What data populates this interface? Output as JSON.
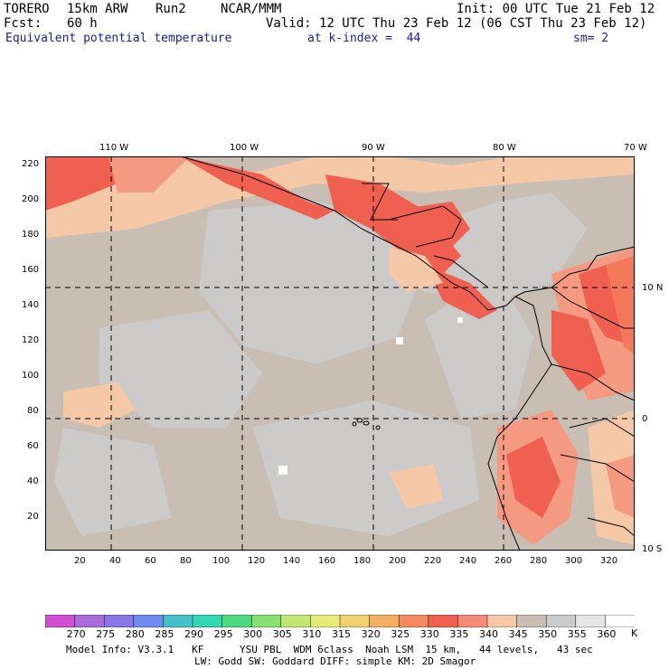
{
  "header": {
    "model": "TORERO",
    "resolution": "15km ARW",
    "run": "Run2",
    "org": "NCAR/MMM",
    "init": "Init: 00 UTC Tue 21 Feb 12",
    "fcst_label": "Fcst:",
    "fcst_value": "60 h",
    "valid": "Valid: 12 UTC Thu 23 Feb 12 (06 CST Thu 23 Feb 12)",
    "field": "Equivalent potential temperature",
    "level": "at k-index =  44",
    "smoothing": "sm= 2"
  },
  "map": {
    "lon_labels": [
      "110 W",
      "100 W",
      "90 W",
      "80 W",
      "70 W"
    ],
    "lat_labels": [
      "10 N",
      "0",
      "10 S"
    ],
    "y_ticks": [
      "220",
      "200",
      "180",
      "160",
      "140",
      "120",
      "100",
      "80",
      "60",
      "40",
      "20"
    ],
    "x_ticks": [
      "20",
      "40",
      "60",
      "80",
      "100",
      "120",
      "140",
      "160",
      "180",
      "200",
      "220",
      "240",
      "260",
      "280",
      "300",
      "320"
    ],
    "colors": {
      "background": "#c8beb4",
      "cool": "#cccccc",
      "warm1": "#f5c8a8",
      "warm2": "#f59a82",
      "warm3": "#f06050",
      "warm4": "#f4785a"
    }
  },
  "colorbar": {
    "levels": [
      "270",
      "275",
      "280",
      "285",
      "290",
      "295",
      "300",
      "305",
      "310",
      "315",
      "320",
      "325",
      "330",
      "335",
      "340",
      "345",
      "350",
      "355",
      "360"
    ],
    "unit": "K",
    "colors": [
      "#d24fd2",
      "#a86cd8",
      "#8878e6",
      "#6e8cf0",
      "#46c0c8",
      "#34d8b0",
      "#50d880",
      "#88e070",
      "#c0e870",
      "#e6ec78",
      "#f2d070",
      "#f4b060",
      "#f48a60",
      "#f06050",
      "#f48a78",
      "#f5c8a8",
      "#c8beb4",
      "#cccccc",
      "#e6e6e6",
      "#ffffff"
    ]
  },
  "footer": {
    "line1": "Model Info: V3.3.1   KF      YSU PBL  WDM 6class  Noah LSM  15 km,   44 levels,   43 sec",
    "line2": "LW: Godd SW: Goddard DIFF: simple KM: 2D Smagor"
  }
}
